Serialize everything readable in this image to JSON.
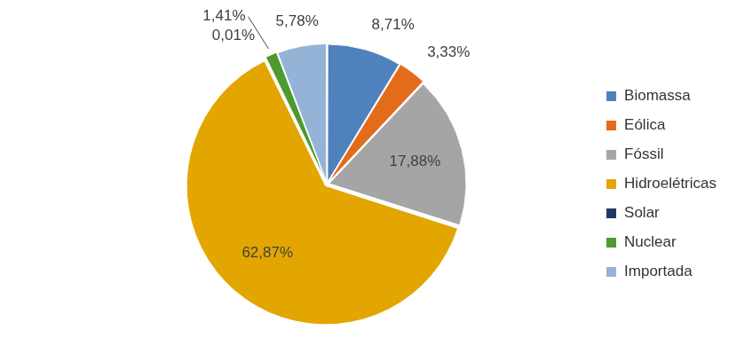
{
  "chart_data": {
    "type": "pie",
    "categories": [
      "Biomassa",
      "Eólica",
      "Fóssil",
      "Hidroelétricas",
      "Solar",
      "Nuclear",
      "Importada"
    ],
    "values": [
      8.71,
      3.33,
      17.88,
      62.87,
      0.01,
      1.41,
      5.78
    ],
    "value_labels": [
      "8,71%",
      "3,33%",
      "17,88%",
      "62,87%",
      "0,01%",
      "1,41%",
      "5,78%"
    ],
    "colors": [
      "#4f81bd",
      "#e36c1a",
      "#a5a5a5",
      "#e3a600",
      "#1f3864",
      "#4e9a2e",
      "#95b3d7"
    ],
    "legend": "right",
    "data_labels": true
  }
}
